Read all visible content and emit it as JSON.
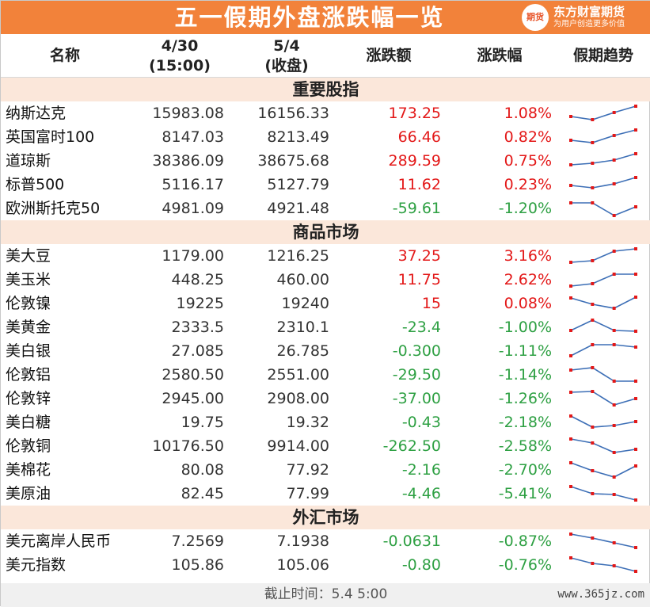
{
  "title": "五一假期外盘涨跌幅一览",
  "logo": {
    "mark": "期货",
    "name": "东方财富期货",
    "slogan": "为用户创造更多价值"
  },
  "headers": {
    "name": "名称",
    "d1_top": "4/30",
    "d1_bottom": "(15:00)",
    "d2_top": "5/4",
    "d2_bottom": "(收盘)",
    "chg": "涨跌额",
    "pct": "涨跌幅",
    "trend": "假期趋势"
  },
  "colors": {
    "up": "#e31818",
    "down": "#2ea043",
    "spark_line": "#3d6fb6",
    "spark_dot": "#e31818",
    "title_bg": "#f2823a",
    "section_bg": "#fbe7da"
  },
  "sections": [
    {
      "title": "重要股指",
      "rows": [
        {
          "name": "纳斯达克",
          "v1": "15983.08",
          "v2": "16156.33",
          "chg": "173.25",
          "pct": "1.08%",
          "dir": "up",
          "trend": [
            0.3,
            0.1,
            0.55,
            0.95
          ]
        },
        {
          "name": "英国富时100",
          "v1": "8147.03",
          "v2": "8213.49",
          "chg": "66.46",
          "pct": "0.82%",
          "dir": "up",
          "trend": [
            0.3,
            0.15,
            0.6,
            0.95
          ]
        },
        {
          "name": "道琼斯",
          "v1": "38386.09",
          "v2": "38675.68",
          "chg": "289.59",
          "pct": "0.75%",
          "dir": "up",
          "trend": [
            0.25,
            0.35,
            0.55,
            0.95
          ]
        },
        {
          "name": "标普500",
          "v1": "5116.17",
          "v2": "5127.79",
          "chg": "11.62",
          "pct": "0.23%",
          "dir": "up",
          "trend": [
            0.45,
            0.3,
            0.55,
            0.95
          ]
        },
        {
          "name": "欧洲斯托克50",
          "v1": "4981.09",
          "v2": "4921.48",
          "chg": "-59.61",
          "pct": "-1.20%",
          "dir": "down",
          "trend": [
            0.85,
            0.85,
            0.05,
            0.6
          ]
        }
      ]
    },
    {
      "title": "商品市场",
      "rows": [
        {
          "name": "美大豆",
          "v1": "1179.00",
          "v2": "1216.25",
          "chg": "37.25",
          "pct": "3.16%",
          "dir": "up",
          "trend": [
            0.1,
            0.2,
            0.8,
            0.95
          ]
        },
        {
          "name": "美玉米",
          "v1": "448.25",
          "v2": "460.00",
          "chg": "11.75",
          "pct": "2.62%",
          "dir": "up",
          "trend": [
            0.1,
            0.25,
            0.85,
            0.85
          ]
        },
        {
          "name": "伦敦镍",
          "v1": "19225",
          "v2": "19240",
          "chg": "15",
          "pct": "0.08%",
          "dir": "up",
          "trend": [
            0.85,
            0.45,
            0.2,
            0.9
          ]
        },
        {
          "name": "美黄金",
          "v1": "2333.5",
          "v2": "2310.1",
          "chg": "-23.4",
          "pct": "-1.00%",
          "dir": "down",
          "trend": [
            0.3,
            0.95,
            0.3,
            0.25
          ]
        },
        {
          "name": "美白银",
          "v1": "27.085",
          "v2": "26.785",
          "chg": "-0.300",
          "pct": "-1.11%",
          "dir": "down",
          "trend": [
            0.2,
            0.9,
            0.9,
            0.75
          ]
        },
        {
          "name": "伦敦铝",
          "v1": "2580.50",
          "v2": "2551.00",
          "chg": "-29.50",
          "pct": "-1.14%",
          "dir": "down",
          "trend": [
            0.8,
            0.95,
            0.1,
            0.1
          ]
        },
        {
          "name": "伦敦锌",
          "v1": "2945.00",
          "v2": "2908.00",
          "chg": "-37.00",
          "pct": "-1.26%",
          "dir": "down",
          "trend": [
            0.9,
            0.95,
            0.1,
            0.5
          ]
        },
        {
          "name": "美白糖",
          "v1": "19.75",
          "v2": "19.32",
          "chg": "-0.43",
          "pct": "-2.18%",
          "dir": "down",
          "trend": [
            0.9,
            0.2,
            0.3,
            0.55
          ]
        },
        {
          "name": "伦敦铜",
          "v1": "10176.50",
          "v2": "9914.00",
          "chg": "-262.50",
          "pct": "-2.58%",
          "dir": "down",
          "trend": [
            0.95,
            0.7,
            0.1,
            0.3
          ]
        },
        {
          "name": "美棉花",
          "v1": "80.08",
          "v2": "77.92",
          "chg": "-2.16",
          "pct": "-2.70%",
          "dir": "down",
          "trend": [
            0.95,
            0.45,
            0.05,
            0.75
          ]
        },
        {
          "name": "美原油",
          "v1": "82.45",
          "v2": "77.99",
          "chg": "-4.46",
          "pct": "-5.41%",
          "dir": "down",
          "trend": [
            0.95,
            0.5,
            0.45,
            0.1
          ]
        }
      ]
    },
    {
      "title": "外汇市场",
      "rows": [
        {
          "name": "美元离岸人民币",
          "v1": "7.2569",
          "v2": "7.1938",
          "chg": "-0.0631",
          "pct": "-0.87%",
          "dir": "down",
          "trend": [
            0.95,
            0.7,
            0.4,
            0.1
          ]
        },
        {
          "name": "美元指数",
          "v1": "105.86",
          "v2": "105.06",
          "chg": "-0.80",
          "pct": "-0.76%",
          "dir": "down",
          "trend": [
            0.95,
            0.6,
            0.45,
            0.1
          ]
        }
      ]
    }
  ],
  "footer": {
    "note": "截止时间：5.4 5:00",
    "site": "www.365jz.com"
  }
}
